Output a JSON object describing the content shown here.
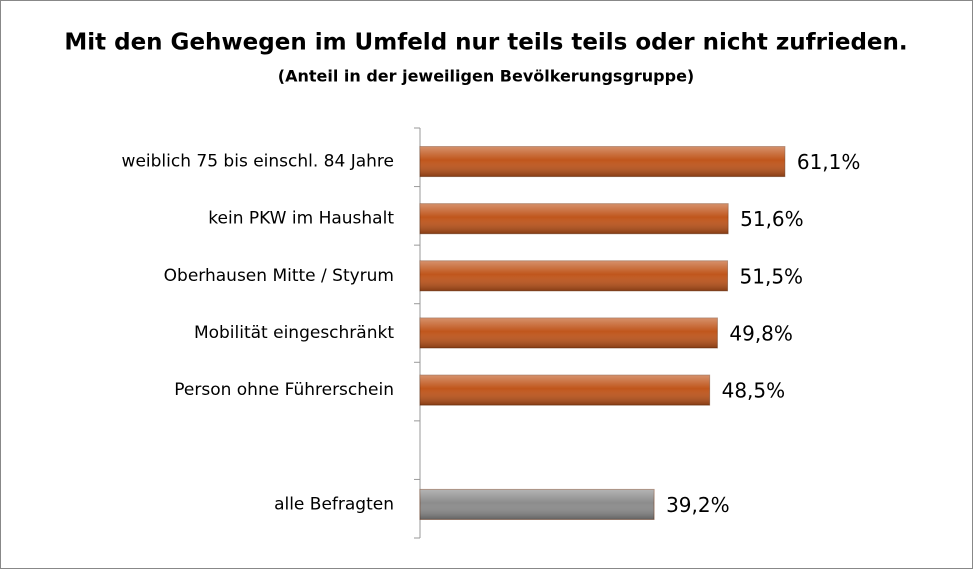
{
  "chart_data": {
    "type": "hbar",
    "title": "Mit den Gehwegen im Umfeld nur teils teils oder nicht zufrieden.",
    "subtitle": "(Anteil in der jeweiligen Bevölkerungsgruppe)",
    "categories": [
      "weiblich 75 bis einschl. 84 Jahre",
      "kein PKW im Haushalt",
      "Oberhausen Mitte / Styrum",
      "Mobilität eingeschränkt",
      "Person ohne Führerschein",
      null,
      "alle Befragten"
    ],
    "values": [
      61.1,
      51.6,
      51.5,
      49.8,
      48.5,
      null,
      39.2
    ],
    "value_labels": [
      "61,1%",
      "51,6%",
      "51,5%",
      "49,8%",
      "48,5%",
      null,
      "39,2%"
    ],
    "colors": [
      "#c0561c",
      "#c0561c",
      "#c0561c",
      "#c0561c",
      "#c0561c",
      null,
      "#8c8c8c"
    ],
    "xlim": [
      0,
      70
    ]
  }
}
